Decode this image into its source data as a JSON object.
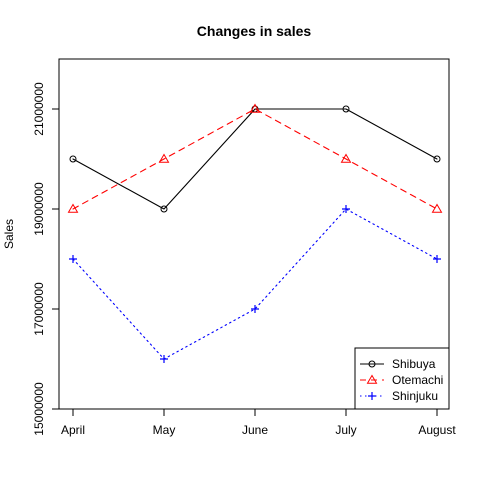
{
  "chart_data": {
    "type": "line",
    "title": "Changes in sales",
    "xlabel": "",
    "ylabel": "Sales",
    "categories": [
      "April",
      "May",
      "June",
      "July",
      "August"
    ],
    "ylim": [
      15000000,
      22000000
    ],
    "yticks": [
      15000000,
      17000000,
      19000000,
      21000000
    ],
    "ytick_labels": [
      "15000000",
      "17000000",
      "19000000",
      "21000000"
    ],
    "grid": false,
    "legend_position": "bottom-right",
    "series": [
      {
        "name": "Shibuya",
        "values": [
          20000000,
          19000000,
          21000000,
          21000000,
          20000000
        ],
        "color": "#000000",
        "line_style": "solid",
        "marker": "circle"
      },
      {
        "name": "Otemachi",
        "values": [
          19000000,
          20000000,
          21000000,
          20000000,
          19000000
        ],
        "color": "#ff0000",
        "line_style": "dashed",
        "marker": "triangle"
      },
      {
        "name": "Shinjuku",
        "values": [
          18000000,
          16000000,
          17000000,
          19000000,
          18000000
        ],
        "color": "#0000ff",
        "line_style": "dotted",
        "marker": "plus"
      }
    ]
  }
}
